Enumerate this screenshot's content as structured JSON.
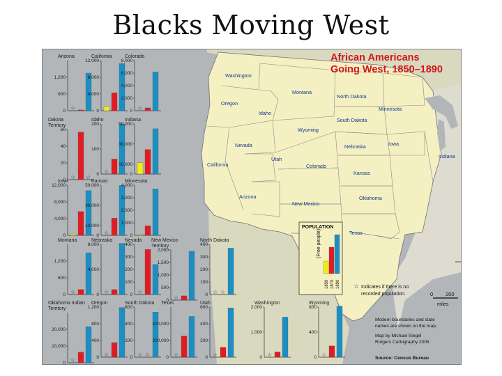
{
  "slide": {
    "title": "Blacks Moving West"
  },
  "map": {
    "title_line1": "African Americans",
    "title_line2": "Going West, 1850–1890",
    "state_labels": [
      {
        "name": "Washington"
      },
      {
        "name": "Montana"
      },
      {
        "name": "North Dakota"
      },
      {
        "name": "Minnesota"
      },
      {
        "name": "Oregon"
      },
      {
        "name": "Idaho"
      },
      {
        "name": "South Dakota"
      },
      {
        "name": "Wyoming"
      },
      {
        "name": "Iowa"
      },
      {
        "name": "Nevada"
      },
      {
        "name": "Utah"
      },
      {
        "name": "Nebraska"
      },
      {
        "name": "California"
      },
      {
        "name": "Colorado"
      },
      {
        "name": "Kansas"
      },
      {
        "name": "Indiana"
      },
      {
        "name": "Arizona"
      },
      {
        "name": "New Mexico"
      },
      {
        "name": "Oklahoma"
      },
      {
        "name": "Texas"
      }
    ],
    "legend": {
      "title": "POPULATION",
      "vertical_note": "(Free people)",
      "years": [
        "1850",
        "1870",
        "1890"
      ],
      "star_note_line1": "Indicates if there is no",
      "star_note_line2": "recorded population."
    },
    "scale": {
      "zero": "0",
      "max": "200",
      "unit": "miles"
    },
    "notes": [
      "Modern boundaries and state",
      "names are shown on the map.",
      "Map by Michael Siegel",
      "Rutgers Cartography 2005",
      "Source: Census Bureau"
    ],
    "colors": {
      "y1850": "#f3ec12",
      "y1870": "#e01c22",
      "y1890": "#1b8fc4",
      "land": "#f4f0c2",
      "water": "#b2b6b9"
    }
  },
  "chart_data": {
    "type": "bar",
    "categories": [
      "1850",
      "1870",
      "1890"
    ],
    "charts": [
      {
        "name": "Arizona",
        "ymax": 1800,
        "ticks": [
          600,
          1200
        ],
        "tick_labels": [
          "600",
          "1,200"
        ],
        "values": [
          null,
          20,
          1350
        ]
      },
      {
        "name": "California",
        "ymax": 12000,
        "ticks": [
          4000,
          8000,
          12000
        ],
        "tick_labels": [
          "4,000",
          "8,000",
          "12,000"
        ],
        "values": [
          950,
          4300,
          11300
        ]
      },
      {
        "name": "Colorado",
        "ymax": 8000,
        "ticks": [
          2000,
          4000,
          6000,
          8000
        ],
        "tick_labels": [
          "2,000",
          "4,000",
          "6,000",
          "8,000"
        ],
        "values": [
          null,
          450,
          6200
        ]
      },
      {
        "name": "Dakota Territory",
        "ymax": 60,
        "ticks": [
          20,
          40,
          60
        ],
        "tick_labels": [
          "20",
          "40",
          "60"
        ],
        "values": [
          null,
          57,
          null
        ]
      },
      {
        "name": "Idaho",
        "ymax": 200,
        "ticks": [
          100,
          200
        ],
        "tick_labels": [
          "100",
          "200"
        ],
        "values": [
          null,
          60,
          200
        ]
      },
      {
        "name": "Indiana",
        "ymax": 50000,
        "ticks": [
          10000,
          30000,
          50000
        ],
        "tick_labels": [
          "10,000",
          "30,000",
          "50,000"
        ],
        "values": [
          11200,
          24500,
          45200
        ]
      },
      {
        "name": "Iowa",
        "ymax": 12000,
        "ticks": [
          4000,
          8000,
          12000
        ],
        "tick_labels": [
          "4,000",
          "8,000",
          "12,000"
        ],
        "values": [
          330,
          5700,
          10700
        ]
      },
      {
        "name": "Kansas",
        "ymax": 50000,
        "ticks": [
          10000,
          30000,
          50000
        ],
        "tick_labels": [
          "10,000",
          "30,000",
          "50,000"
        ],
        "values": [
          null,
          17100,
          49700
        ]
      },
      {
        "name": "Minnesota",
        "ymax": 4000,
        "ticks": [
          1000,
          2000,
          3000,
          4000
        ],
        "tick_labels": [
          "1,000",
          "2,000",
          "3,000",
          "4,000"
        ],
        "values": [
          40,
          760,
          3700
        ]
      },
      {
        "name": "Montana",
        "ymax": 1800,
        "ticks": [
          600,
          1200
        ],
        "tick_labels": [
          "600",
          "1,200"
        ],
        "values": [
          null,
          180,
          1500
        ]
      },
      {
        "name": "Nebraska",
        "ymax": 8000,
        "ticks": [
          4000,
          8000
        ],
        "tick_labels": [
          "4,000",
          "8,000"
        ],
        "values": [
          null,
          790,
          8900
        ]
      },
      {
        "name": "Nevada",
        "ymax": 400,
        "ticks": [
          100,
          200,
          300,
          400
        ],
        "tick_labels": [
          "100",
          "200",
          "300",
          "400"
        ],
        "values": [
          null,
          360,
          240
        ]
      },
      {
        "name": "New Mexico Territory",
        "ymax": 2000,
        "ticks": [
          500,
          1000,
          1500,
          2000
        ],
        "tick_labels": [
          "500",
          "1,000",
          "1,500",
          "2,000"
        ],
        "values": [
          null,
          170,
          1950
        ]
      },
      {
        "name": "North Dakota",
        "ymax": 400,
        "ticks": [
          100,
          200,
          300,
          400
        ],
        "tick_labels": [
          "100",
          "200",
          "300",
          "400"
        ],
        "values": [
          null,
          null,
          370
        ]
      },
      {
        "name": "Oklahoma Indian Territory",
        "ymax": 30000,
        "ticks": [
          10000,
          20000
        ],
        "tick_labels": [
          "10,000",
          "20,000"
        ],
        "values": [
          null,
          6400,
          21600
        ]
      },
      {
        "name": "Oregon",
        "ymax": 1200,
        "ticks": [
          400,
          800,
          1200
        ],
        "tick_labels": [
          "400",
          "800",
          "1,200"
        ],
        "values": [
          null,
          350,
          1190
        ]
      },
      {
        "name": "South Dakota",
        "ymax": 600,
        "ticks": [
          200,
          400,
          600
        ],
        "tick_labels": [
          "200",
          "400",
          "600"
        ],
        "values": [
          null,
          null,
          540
        ]
      },
      {
        "name": "Texas",
        "ymax": 600000,
        "ticks": [
          200000,
          400000
        ],
        "tick_labels": [
          "200,000",
          "400,000"
        ],
        "values": [
          null,
          253000,
          488000
        ]
      },
      {
        "name": "Utah",
        "ymax": 600,
        "ticks": [
          200,
          400,
          600
        ],
        "tick_labels": [
          "200",
          "400",
          "600"
        ],
        "values": [
          null,
          118,
          590
        ]
      },
      {
        "name": "Washington",
        "ymax": 2000,
        "ticks": [
          1000,
          2000
        ],
        "tick_labels": [
          "1,000",
          "2,000"
        ],
        "values": [
          null,
          210,
          1600
        ]
      },
      {
        "name": "Wyoming",
        "ymax": 800,
        "ticks": [
          400,
          800
        ],
        "tick_labels": [
          "400",
          "800"
        ],
        "values": [
          null,
          180,
          920
        ]
      }
    ]
  }
}
